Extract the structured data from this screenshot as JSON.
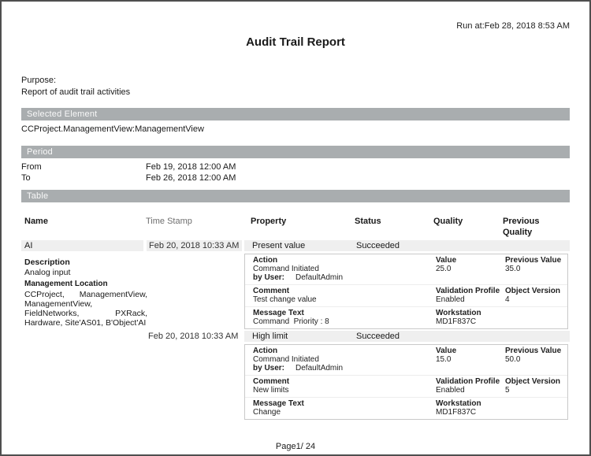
{
  "colors": {
    "section_bar": "#a9adaf",
    "section_bar_text": "#f8f8f8",
    "row_band": "#efefef",
    "detail_border": "#c9c9c9",
    "page_border": "#4f4f4f"
  },
  "header": {
    "run_at": "Run at:Feb 28, 2018 8:53 AM",
    "title": "Audit Trail Report"
  },
  "purpose": {
    "label": "Purpose:",
    "text": "Report of audit trail activities"
  },
  "selected_element": {
    "header": "Selected Element",
    "value": "CCProject.ManagementView:ManagementView"
  },
  "period": {
    "header": "Period",
    "from_label": "From",
    "from_value": "Feb 19, 2018 12:00 AM",
    "to_label": "To",
    "to_value": "Feb 26, 2018 12:00 AM"
  },
  "table": {
    "header": "Table",
    "columns": {
      "name": "Name",
      "time_stamp": "Time Stamp",
      "property": "Property",
      "status": "Status",
      "quality": "Quality",
      "previous_quality": "Previous Quality"
    },
    "entry": {
      "name": "AI",
      "description_label": "Description",
      "description": "Analog input",
      "location_label": "Management Location",
      "location": "CCProject, ManagementView, ManagementView, FieldNetworks, PXRack, Hardware, Site'AS01, B'Object'AI",
      "events": [
        {
          "timestamp": "Feb 20, 2018 10:33 AM",
          "property": "Present value",
          "status": "Succeeded",
          "action_label": "Action",
          "action": "Command Initiated",
          "by_user_label": "by User:",
          "by_user": "DefaultAdmin",
          "value_label": "Value",
          "value": "25.0",
          "previous_value_label": "Previous Value",
          "previous_value": "35.0",
          "comment_label": "Comment",
          "comment": "Test change value",
          "validation_profile_label": "Validation Profile",
          "validation_profile": "Enabled",
          "object_version_label": "Object Version",
          "object_version": "4",
          "message_label": "Message Text",
          "message": "Command  Priority : 8",
          "workstation_label": "Workstation",
          "workstation": "MD1F837C"
        },
        {
          "timestamp": "Feb 20, 2018 10:33 AM",
          "property": "High limit",
          "status": "Succeeded",
          "action_label": "Action",
          "action": "Command Initiated",
          "by_user_label": "by User:",
          "by_user": "DefaultAdmin",
          "value_label": "Value",
          "value": "15.0",
          "previous_value_label": "Previous Value",
          "previous_value": "50.0",
          "comment_label": "Comment",
          "comment": "New limits",
          "validation_profile_label": "Validation Profile",
          "validation_profile": "Enabled",
          "object_version_label": "Object Version",
          "object_version": "5",
          "message_label": "Message Text",
          "message": "Change",
          "workstation_label": "Workstation",
          "workstation": "MD1F837C"
        }
      ]
    }
  },
  "footer": {
    "page": "Page1/ 24"
  }
}
